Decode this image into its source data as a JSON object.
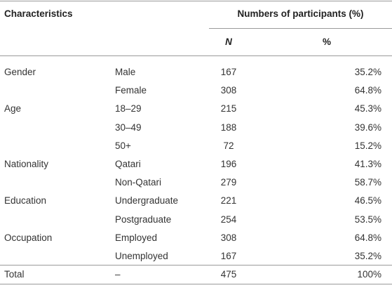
{
  "table": {
    "header": {
      "characteristics": "Characteristics",
      "numbers": "Numbers of participants (%)",
      "n": "N",
      "pct": "%"
    },
    "groups": [
      {
        "label": "Gender",
        "rows": [
          {
            "label": "Male",
            "n": 167,
            "pct": "35.2%"
          },
          {
            "label": "Female",
            "n": 308,
            "pct": "64.8%"
          }
        ]
      },
      {
        "label": "Age",
        "rows": [
          {
            "label": "18–29",
            "n": 215,
            "pct": "45.3%"
          },
          {
            "label": "30–49",
            "n": 188,
            "pct": "39.6%"
          },
          {
            "label": "50+",
            "n": 72,
            "pct": "15.2%"
          }
        ]
      },
      {
        "label": "Nationality",
        "rows": [
          {
            "label": "Qatari",
            "n": 196,
            "pct": "41.3%"
          },
          {
            "label": "Non-Qatari",
            "n": 279,
            "pct": "58.7%"
          }
        ]
      },
      {
        "label": "Education",
        "rows": [
          {
            "label": "Undergraduate",
            "n": 221,
            "pct": "46.5%"
          },
          {
            "label": "Postgraduate",
            "n": 254,
            "pct": "53.5%"
          }
        ]
      },
      {
        "label": "Occupation",
        "rows": [
          {
            "label": "Employed",
            "n": 308,
            "pct": "64.8%"
          },
          {
            "label": "Unemployed",
            "n": 167,
            "pct": "35.2%"
          }
        ]
      },
      {
        "label": "Total",
        "rows": [
          {
            "label": "–",
            "n": 475,
            "pct": "100%"
          }
        ]
      }
    ]
  }
}
